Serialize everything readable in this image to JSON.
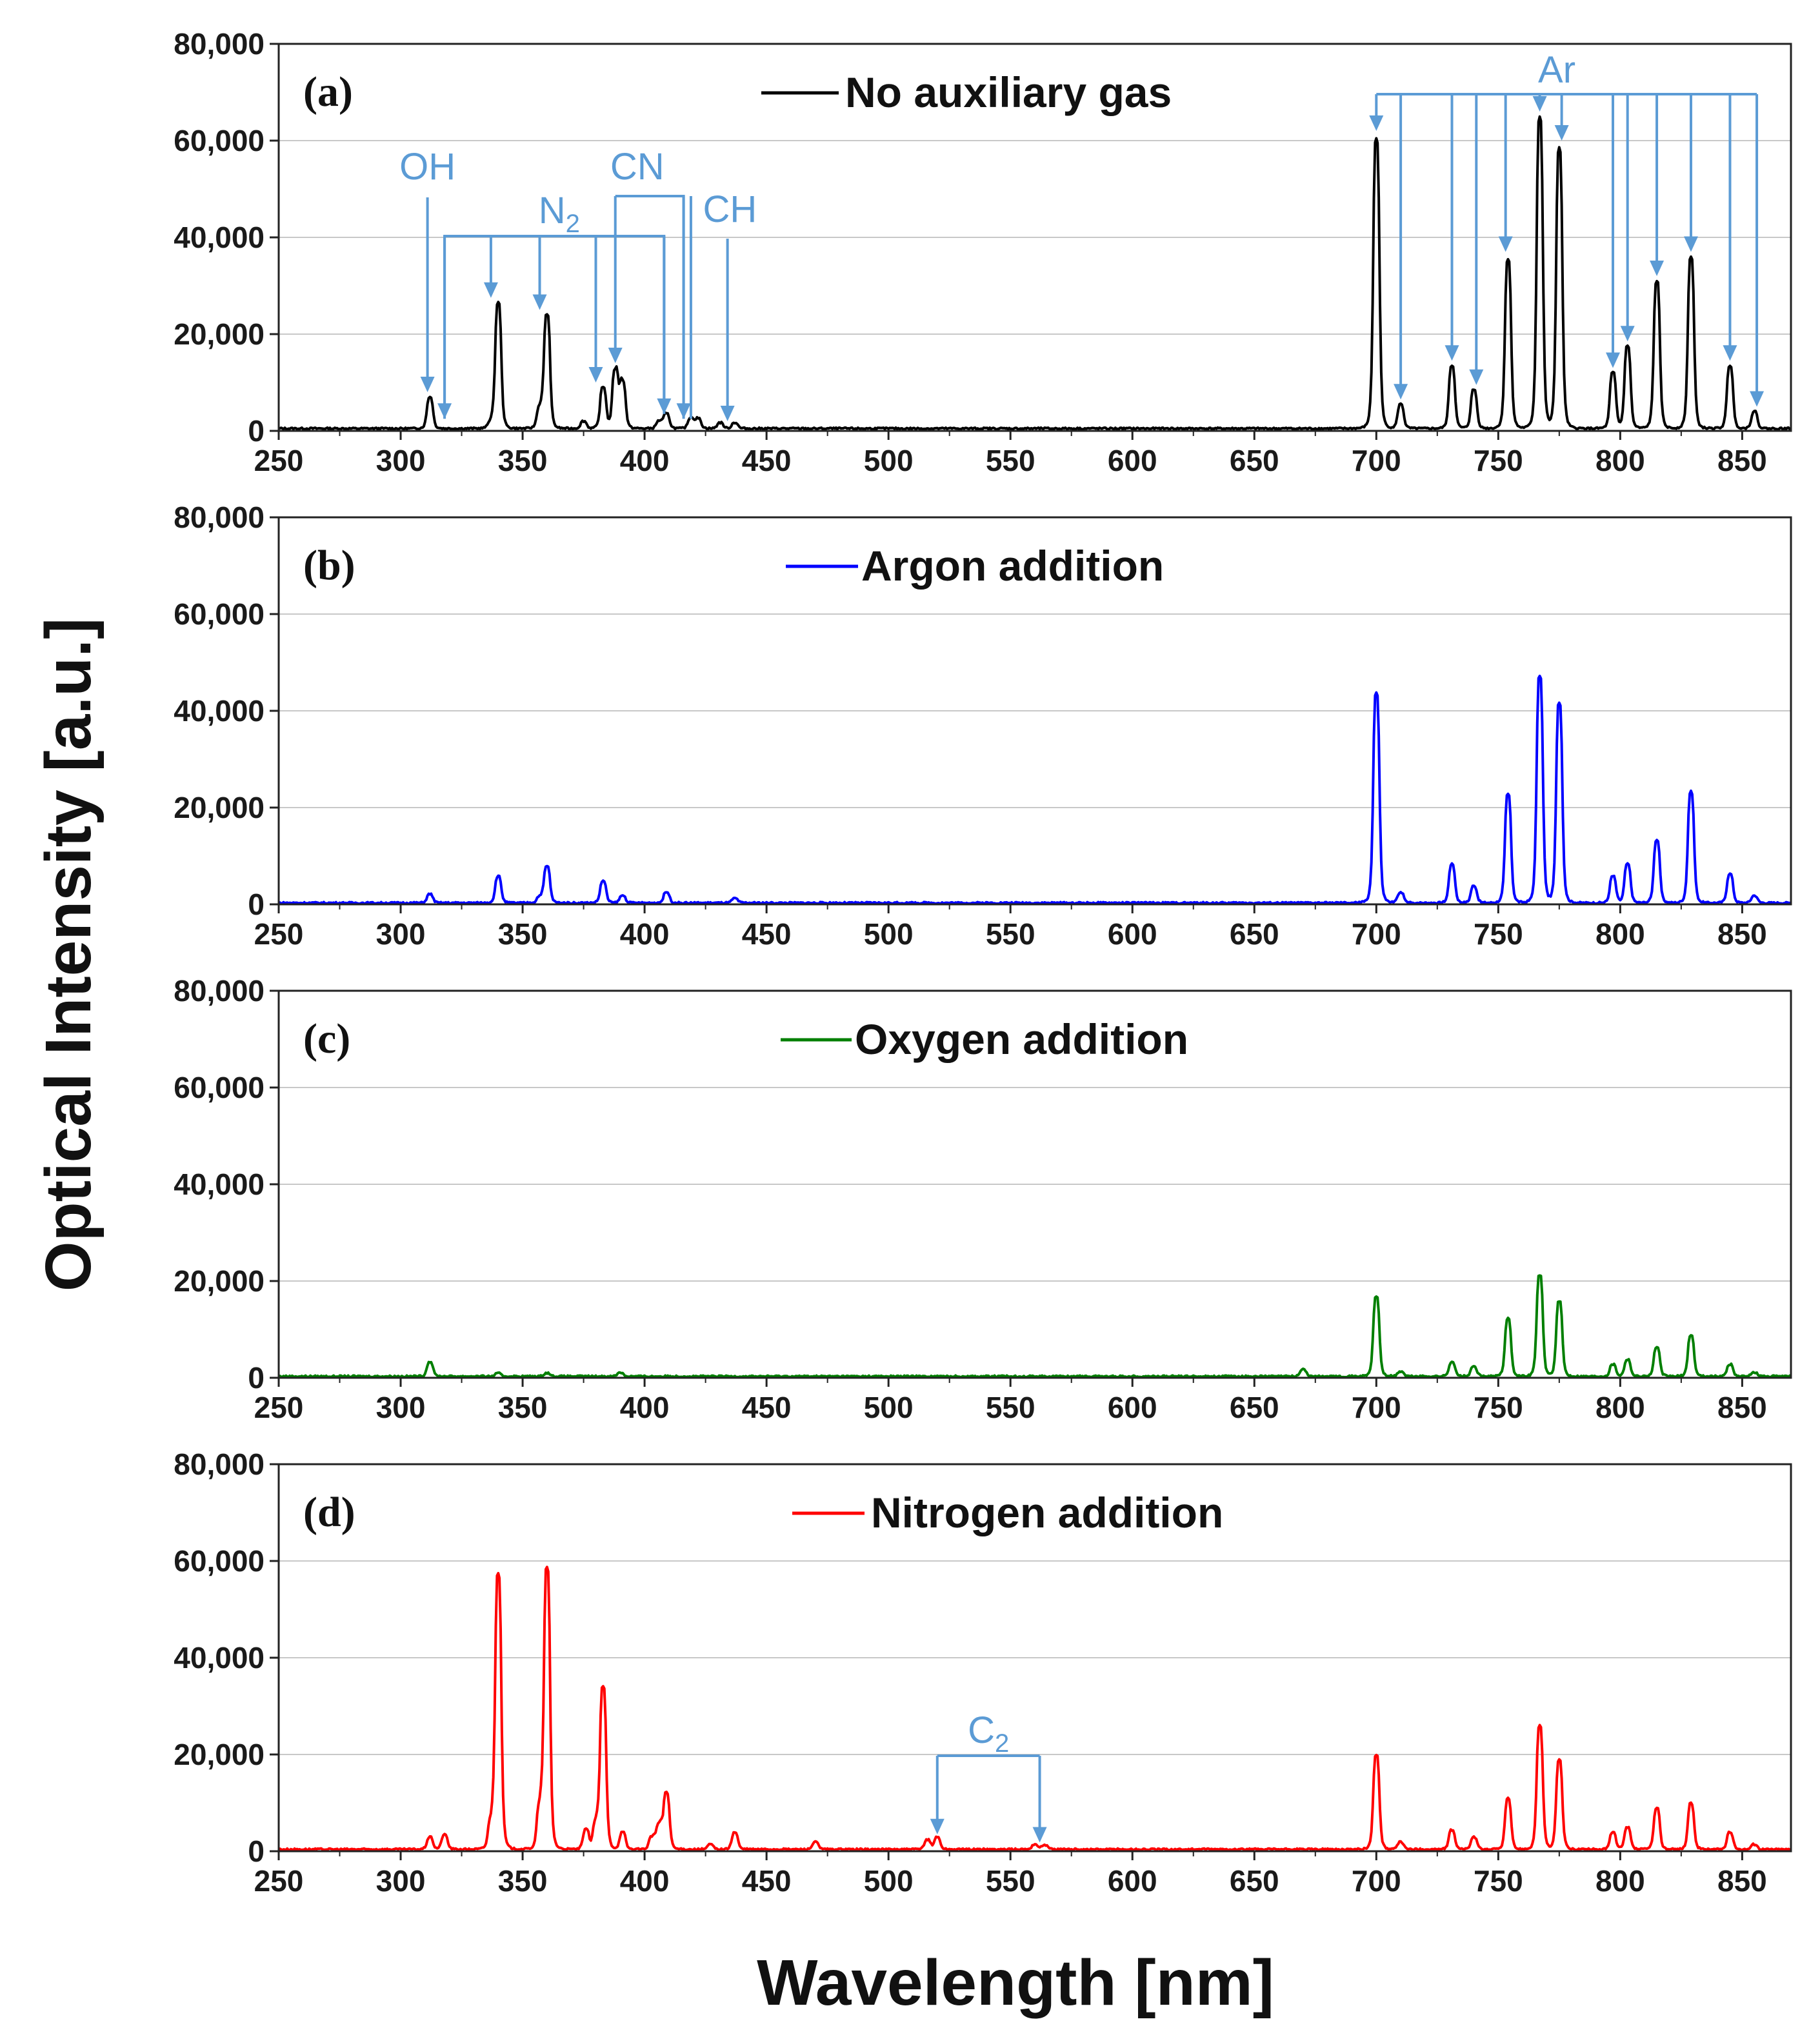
{
  "figure": {
    "y_axis_title": "Optical Intensity [a.u.]",
    "x_axis_title": "Wavelength [nm]",
    "annotation_color": "#5B9BD5"
  },
  "chart_data": [
    {
      "type": "line",
      "panel": "(a)",
      "legend": "No auxiliary gas",
      "color": "#000000",
      "xlim": [
        250,
        870
      ],
      "ylim": [
        0,
        80000
      ],
      "xticks": [
        "250",
        "300",
        "350",
        "400",
        "450",
        "500",
        "550",
        "600",
        "650",
        "700",
        "750",
        "800",
        "850"
      ],
      "yticks": [
        "0",
        "20,000",
        "40,000",
        "60,000",
        "80,000"
      ],
      "baseline": 500,
      "peaks": [
        {
          "x": 312,
          "y": 6500
        },
        {
          "x": 337,
          "y": 1200
        },
        {
          "x": 340,
          "y": 26000
        },
        {
          "x": 357,
          "y": 4000
        },
        {
          "x": 360,
          "y": 23500
        },
        {
          "x": 375,
          "y": 1500
        },
        {
          "x": 383,
          "y": 8500
        },
        {
          "x": 388,
          "y": 12000
        },
        {
          "x": 391,
          "y": 9500
        },
        {
          "x": 406,
          "y": 1500
        },
        {
          "x": 409,
          "y": 3000
        },
        {
          "x": 419,
          "y": 2200
        },
        {
          "x": 422,
          "y": 2000
        },
        {
          "x": 431,
          "y": 1200
        },
        {
          "x": 437,
          "y": 1200
        },
        {
          "x": 700,
          "y": 60000
        },
        {
          "x": 710,
          "y": 5000
        },
        {
          "x": 731,
          "y": 13000
        },
        {
          "x": 740,
          "y": 8000
        },
        {
          "x": 754,
          "y": 35000
        },
        {
          "x": 767,
          "y": 64500
        },
        {
          "x": 775,
          "y": 58000
        },
        {
          "x": 797,
          "y": 11500
        },
        {
          "x": 803,
          "y": 17000
        },
        {
          "x": 815,
          "y": 30500
        },
        {
          "x": 829,
          "y": 35500
        },
        {
          "x": 845,
          "y": 13000
        },
        {
          "x": 855,
          "y": 3500
        }
      ],
      "annotations": [
        {
          "label": "OH",
          "sub": ""
        },
        {
          "label": "N",
          "sub": "2"
        },
        {
          "label": "CN",
          "sub": ""
        },
        {
          "label": "CH",
          "sub": ""
        },
        {
          "label": "Ar",
          "sub": ""
        }
      ]
    },
    {
      "type": "line",
      "panel": "(b)",
      "legend": "Argon addition",
      "color": "#0000FF",
      "xlim": [
        250,
        870
      ],
      "ylim": [
        0,
        80000
      ],
      "xticks": [
        "250",
        "300",
        "350",
        "400",
        "450",
        "500",
        "550",
        "600",
        "650",
        "700",
        "750",
        "800",
        "850"
      ],
      "yticks": [
        "0",
        "20,000",
        "40,000",
        "60,000",
        "80,000"
      ],
      "baseline": 300,
      "peaks": [
        {
          "x": 312,
          "y": 1800
        },
        {
          "x": 340,
          "y": 5500
        },
        {
          "x": 357,
          "y": 1200
        },
        {
          "x": 360,
          "y": 7500
        },
        {
          "x": 383,
          "y": 4500
        },
        {
          "x": 391,
          "y": 1500
        },
        {
          "x": 409,
          "y": 2200
        },
        {
          "x": 437,
          "y": 900
        },
        {
          "x": 700,
          "y": 43500
        },
        {
          "x": 710,
          "y": 2200
        },
        {
          "x": 731,
          "y": 8000
        },
        {
          "x": 740,
          "y": 3500
        },
        {
          "x": 754,
          "y": 22500
        },
        {
          "x": 767,
          "y": 47000
        },
        {
          "x": 775,
          "y": 41500
        },
        {
          "x": 797,
          "y": 5500
        },
        {
          "x": 803,
          "y": 8000
        },
        {
          "x": 815,
          "y": 13000
        },
        {
          "x": 829,
          "y": 23000
        },
        {
          "x": 845,
          "y": 6000
        },
        {
          "x": 855,
          "y": 1500
        }
      ]
    },
    {
      "type": "line",
      "panel": "(c)",
      "legend": "Oxygen addition",
      "color": "#007F00",
      "xlim": [
        250,
        870
      ],
      "ylim": [
        0,
        80000
      ],
      "xticks": [
        "250",
        "300",
        "350",
        "400",
        "450",
        "500",
        "550",
        "600",
        "650",
        "700",
        "750",
        "800",
        "850"
      ],
      "yticks": [
        "0",
        "20,000",
        "40,000",
        "60,000",
        "80,000"
      ],
      "baseline": 300,
      "peaks": [
        {
          "x": 312,
          "y": 3000
        },
        {
          "x": 340,
          "y": 600
        },
        {
          "x": 360,
          "y": 700
        },
        {
          "x": 390,
          "y": 800
        },
        {
          "x": 670,
          "y": 1500
        },
        {
          "x": 700,
          "y": 16500
        },
        {
          "x": 710,
          "y": 1000
        },
        {
          "x": 731,
          "y": 3000
        },
        {
          "x": 740,
          "y": 2000
        },
        {
          "x": 754,
          "y": 12000
        },
        {
          "x": 767,
          "y": 21000
        },
        {
          "x": 775,
          "y": 15500
        },
        {
          "x": 797,
          "y": 2500
        },
        {
          "x": 803,
          "y": 3500
        },
        {
          "x": 815,
          "y": 6000
        },
        {
          "x": 829,
          "y": 8500
        },
        {
          "x": 845,
          "y": 2500
        },
        {
          "x": 855,
          "y": 800
        }
      ]
    },
    {
      "type": "line",
      "panel": "(d)",
      "legend": "Nitrogen addition",
      "color": "#FF0000",
      "xlim": [
        250,
        870
      ],
      "ylim": [
        0,
        80000
      ],
      "xticks": [
        "250",
        "300",
        "350",
        "400",
        "450",
        "500",
        "550",
        "600",
        "650",
        "700",
        "750",
        "800",
        "850"
      ],
      "yticks": [
        "0",
        "20,000",
        "40,000",
        "60,000",
        "80,000"
      ],
      "baseline": 400,
      "peaks": [
        {
          "x": 312,
          "y": 2500
        },
        {
          "x": 318,
          "y": 3000
        },
        {
          "x": 337,
          "y": 5000
        },
        {
          "x": 340,
          "y": 57000
        },
        {
          "x": 357,
          "y": 8000
        },
        {
          "x": 360,
          "y": 58000
        },
        {
          "x": 376,
          "y": 4000
        },
        {
          "x": 380,
          "y": 5000
        },
        {
          "x": 383,
          "y": 33500
        },
        {
          "x": 391,
          "y": 3500
        },
        {
          "x": 403,
          "y": 2500
        },
        {
          "x": 406,
          "y": 5000
        },
        {
          "x": 409,
          "y": 11500
        },
        {
          "x": 427,
          "y": 1000
        },
        {
          "x": 437,
          "y": 3500
        },
        {
          "x": 470,
          "y": 1500
        },
        {
          "x": 516,
          "y": 2000
        },
        {
          "x": 520,
          "y": 2500
        },
        {
          "x": 560,
          "y": 1000
        },
        {
          "x": 564,
          "y": 900
        },
        {
          "x": 700,
          "y": 19500
        },
        {
          "x": 710,
          "y": 1500
        },
        {
          "x": 731,
          "y": 4000
        },
        {
          "x": 740,
          "y": 2500
        },
        {
          "x": 754,
          "y": 10500
        },
        {
          "x": 767,
          "y": 25500
        },
        {
          "x": 775,
          "y": 18500
        },
        {
          "x": 797,
          "y": 3500
        },
        {
          "x": 803,
          "y": 4500
        },
        {
          "x": 815,
          "y": 8500
        },
        {
          "x": 829,
          "y": 9500
        },
        {
          "x": 845,
          "y": 3500
        },
        {
          "x": 855,
          "y": 1000
        }
      ],
      "annotations": [
        {
          "label": "C",
          "sub": "2"
        }
      ]
    }
  ]
}
